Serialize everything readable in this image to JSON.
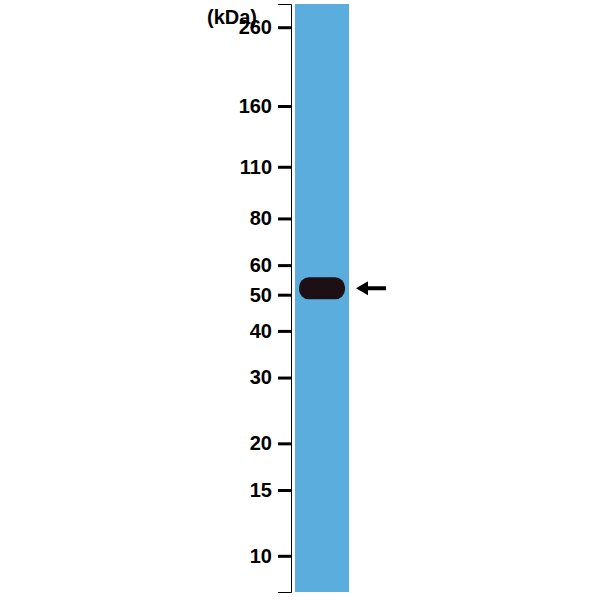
{
  "chart_data": {
    "type": "blot",
    "ylabel": "(kDa)",
    "log": "y",
    "ylim": [
      8,
      300
    ],
    "yticks": [
      10,
      15,
      20,
      30,
      40,
      50,
      60,
      80,
      110,
      160,
      260
    ],
    "values": [
      52
    ],
    "color": "#1c1014"
  }
}
